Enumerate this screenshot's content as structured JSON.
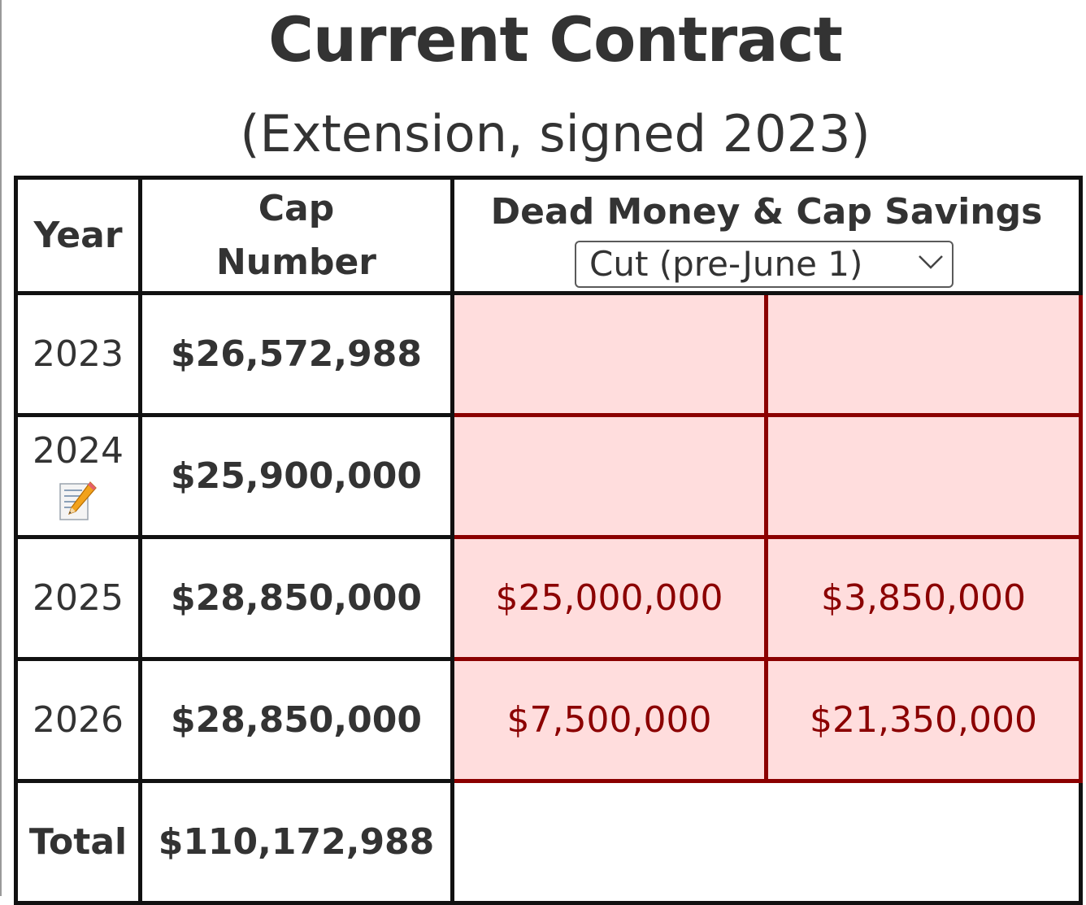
{
  "header": {
    "title": "Current Contract",
    "subtitle": "(Extension, signed 2023)"
  },
  "table": {
    "columns": {
      "year": "Year",
      "cap_number_line1": "Cap",
      "cap_number_line2": "Number",
      "dead_money": "Dead Money & Cap Savings"
    },
    "scenario_select": {
      "selected": "Cut (pre-June 1)"
    },
    "rows": [
      {
        "year": "2023",
        "cap_number": "$26,572,988",
        "dead_money": "",
        "cap_savings": ""
      },
      {
        "year": "2024",
        "cap_number": "$25,900,000",
        "dead_money": "",
        "cap_savings": "",
        "icon": "pencil-memo-icon"
      },
      {
        "year": "2025",
        "cap_number": "$28,850,000",
        "dead_money": "$25,000,000",
        "cap_savings": "$3,850,000"
      },
      {
        "year": "2026",
        "cap_number": "$28,850,000",
        "dead_money": "$7,500,000",
        "cap_savings": "$21,350,000"
      }
    ],
    "total": {
      "label": "Total",
      "cap_number": "$110,172,988"
    }
  },
  "colors": {
    "text": "#333333",
    "border": "#111111",
    "dead_money_bg": "#ffdddd",
    "dead_money_text": "#8b0000"
  }
}
